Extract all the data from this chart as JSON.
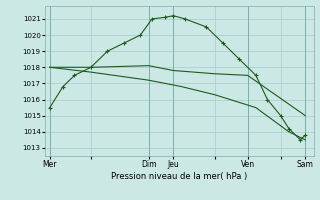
{
  "background_color": "#cce8e4",
  "grid_color": "#aacccc",
  "line_color": "#1a5c1a",
  "xlabel": "Pression niveau de la mer( hPa )",
  "ylim": [
    1012.5,
    1021.8
  ],
  "yticks": [
    1013,
    1014,
    1015,
    1016,
    1017,
    1018,
    1019,
    1020,
    1021
  ],
  "xtick_labels": [
    "Mer",
    "",
    "Dim",
    "Jeu",
    "",
    "Ven",
    "",
    "Sam"
  ],
  "xtick_positions": [
    0,
    2.5,
    6,
    7.5,
    10,
    12,
    14,
    15.5
  ],
  "xlim": [
    -0.3,
    16.0
  ],
  "series1_x": [
    0,
    0.8,
    1.5,
    2.5,
    3.5,
    4.5,
    5.5,
    6.2,
    7.0,
    7.5,
    8.2,
    9.5,
    10.5,
    11.5,
    12.5,
    13.2,
    14.0,
    14.5,
    15.2,
    15.5
  ],
  "series1_y": [
    1015.5,
    1016.8,
    1017.5,
    1018.0,
    1019.0,
    1019.5,
    1020.0,
    1021.0,
    1021.1,
    1021.2,
    1021.0,
    1020.5,
    1019.5,
    1018.5,
    1017.5,
    1016.0,
    1015.0,
    1014.2,
    1013.5,
    1013.8
  ],
  "series2_x": [
    0,
    2.5,
    6.0,
    7.5,
    10.0,
    12.0,
    15.5
  ],
  "series2_y": [
    1018.0,
    1018.0,
    1018.1,
    1017.8,
    1017.6,
    1017.5,
    1015.0
  ],
  "series3_x": [
    0,
    2.5,
    6.0,
    8.0,
    10.0,
    12.5,
    14.5,
    15.5
  ],
  "series3_y": [
    1018.0,
    1017.7,
    1017.2,
    1016.8,
    1016.3,
    1015.5,
    1014.0,
    1013.5
  ],
  "vlines_x": [
    0,
    6.0,
    7.5,
    12.0,
    15.5
  ],
  "figsize": [
    3.2,
    2.0
  ],
  "dpi": 100
}
